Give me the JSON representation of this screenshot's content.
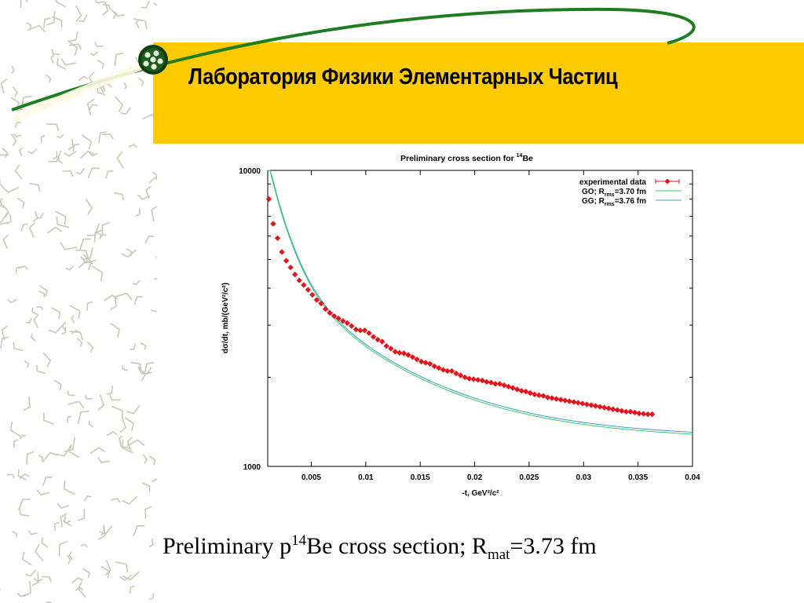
{
  "header": {
    "title": "Лаборатория Физики Элементарных Частиц"
  },
  "colors": {
    "header_band": "#FDCB00",
    "green_arc": "#1E7D1E",
    "data_points": "#E4141B",
    "fit_go": "#33CC66",
    "fit_gg": "#3399CC"
  },
  "icons": {
    "logo": "particle-cluster-logo"
  },
  "caption": {
    "prefix": "Preliminary p",
    "sup": "14",
    "middle": "Be cross section;  R",
    "sub": "mat",
    "suffix": "=3.73 fm"
  },
  "chart_data": {
    "type": "scatter",
    "title_text": "Preliminary cross section for ",
    "title_sup": "14",
    "title_end": "Be",
    "ylabel": "dσ/dt, mb/(GeV²/c²)",
    "xlabel": "-t, GeV²/c²",
    "xlim": [
      0.001,
      0.04
    ],
    "ylim": [
      1000,
      10000
    ],
    "log_y": true,
    "grid": false,
    "legend_position": "top-right",
    "x_tick_labels": [
      "0.005",
      "0.01",
      "0.015",
      "0.02",
      "0.025",
      "0.03",
      "0.035",
      "0.04"
    ],
    "x_ticks": [
      0.005,
      0.01,
      0.015,
      0.02,
      0.025,
      0.03,
      0.035,
      0.04
    ],
    "y_tick_labels": [
      "10000",
      "1000"
    ],
    "y_ticks": [
      10000,
      1000
    ],
    "legend": [
      {
        "text": "experimental data",
        "sub": "",
        "rest": ""
      },
      {
        "text": "GO; R",
        "sub": "rms",
        "rest": "=3.70 fm"
      },
      {
        "text": "GG; R",
        "sub": "rms",
        "rest": "=3.76 fm"
      }
    ],
    "series": [
      {
        "name": "experimental data",
        "x": [
          0.0011,
          0.0015,
          0.0019,
          0.0023,
          0.0027,
          0.0031,
          0.0035,
          0.0039,
          0.0043,
          0.0047,
          0.0051,
          0.0055,
          0.0059,
          0.0063,
          0.0067,
          0.0071,
          0.0075,
          0.0079,
          0.0083,
          0.0087,
          0.0091,
          0.0095,
          0.0099,
          0.0103,
          0.0107,
          0.0111,
          0.0115,
          0.0119,
          0.0123,
          0.0127,
          0.0131,
          0.0135,
          0.0139,
          0.0143,
          0.0147,
          0.0151,
          0.0155,
          0.0159,
          0.0163,
          0.0167,
          0.0171,
          0.0175,
          0.0179,
          0.0183,
          0.0187,
          0.0191,
          0.0195,
          0.0199,
          0.0203,
          0.0207,
          0.0211,
          0.0215,
          0.0219,
          0.0223,
          0.0227,
          0.0231,
          0.0235,
          0.0239,
          0.0243,
          0.0247,
          0.0251,
          0.0255,
          0.0259,
          0.0263,
          0.0267,
          0.0271,
          0.0275,
          0.0279,
          0.0283,
          0.0287,
          0.0291,
          0.0295,
          0.0299,
          0.0303,
          0.0307,
          0.0311,
          0.0315,
          0.0319,
          0.0323,
          0.0327,
          0.0331,
          0.0335,
          0.0339,
          0.0343,
          0.0347,
          0.0351,
          0.0355,
          0.0359,
          0.0363
        ],
        "y": [
          8000,
          6600,
          5900,
          5300,
          4950,
          4700,
          4450,
          4250,
          4100,
          3950,
          3800,
          3650,
          3550,
          3400,
          3300,
          3220,
          3160,
          3100,
          3050,
          2980,
          2900,
          2880,
          2880,
          2820,
          2740,
          2680,
          2640,
          2550,
          2500,
          2440,
          2420,
          2410,
          2380,
          2340,
          2300,
          2260,
          2240,
          2220,
          2180,
          2150,
          2120,
          2100,
          2100,
          2060,
          2030,
          2000,
          1980,
          1970,
          1960,
          1950,
          1930,
          1920,
          1900,
          1900,
          1880,
          1860,
          1840,
          1820,
          1800,
          1790,
          1770,
          1750,
          1740,
          1730,
          1710,
          1700,
          1690,
          1680,
          1670,
          1660,
          1650,
          1640,
          1630,
          1620,
          1610,
          1600,
          1590,
          1580,
          1570,
          1560,
          1550,
          1540,
          1530,
          1530,
          1520,
          1510,
          1505,
          1500,
          1500
        ]
      }
    ]
  }
}
